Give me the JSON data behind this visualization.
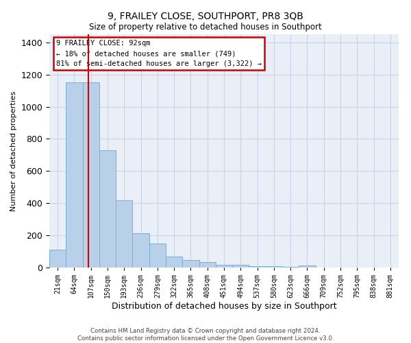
{
  "title": "9, FRAILEY CLOSE, SOUTHPORT, PR8 3QB",
  "subtitle": "Size of property relative to detached houses in Southport",
  "xlabel": "Distribution of detached houses by size in Southport",
  "ylabel": "Number of detached properties",
  "categories": [
    "21sqm",
    "64sqm",
    "107sqm",
    "150sqm",
    "193sqm",
    "236sqm",
    "279sqm",
    "322sqm",
    "365sqm",
    "408sqm",
    "451sqm",
    "494sqm",
    "537sqm",
    "580sqm",
    "623sqm",
    "666sqm",
    "709sqm",
    "752sqm",
    "795sqm",
    "838sqm",
    "881sqm"
  ],
  "values": [
    110,
    1150,
    1150,
    730,
    420,
    215,
    148,
    70,
    48,
    32,
    18,
    15,
    10,
    8,
    5,
    14,
    2,
    2,
    2,
    2,
    2
  ],
  "bar_color": "#b8d0e8",
  "bar_edge_color": "#7aafd4",
  "property_line_x": 1.85,
  "annotation_text": "9 FRAILEY CLOSE: 92sqm\n← 18% of detached houses are smaller (749)\n81% of semi-detached houses are larger (3,322) →",
  "annotation_box_color": "#ffffff",
  "annotation_box_edge_color": "#cc0000",
  "footer_line1": "Contains HM Land Registry data © Crown copyright and database right 2024.",
  "footer_line2": "Contains public sector information licensed under the Open Government Licence v3.0.",
  "ylim": [
    0,
    1450
  ],
  "yticks": [
    0,
    200,
    400,
    600,
    800,
    1000,
    1200,
    1400
  ],
  "grid_color": "#c8d4e4",
  "bg_color": "#eaeff7"
}
